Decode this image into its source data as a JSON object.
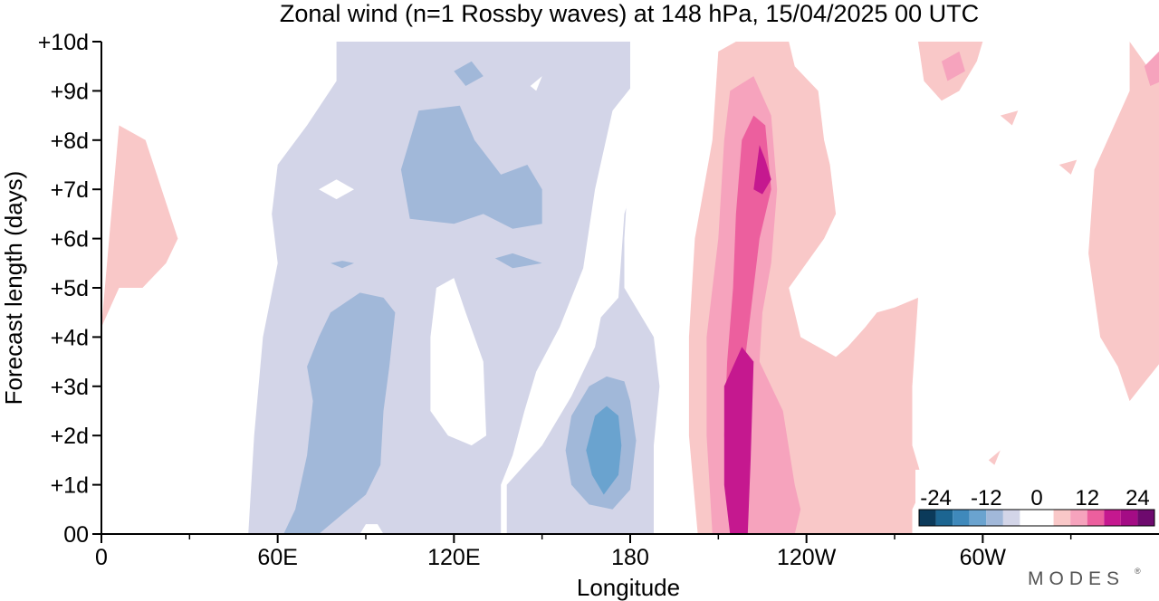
{
  "chart_data": {
    "type": "heatmap",
    "title": "Zonal wind (n=1 Rossby waves) at 148 hPa,  15/04/2025  00 UTC",
    "xlabel": "Longitude",
    "ylabel": "Forecast length (days)",
    "x_ticks": [
      {
        "lon": 0,
        "label": "0"
      },
      {
        "lon": 60,
        "label": "60E"
      },
      {
        "lon": 120,
        "label": "120E"
      },
      {
        "lon": 180,
        "label": "180"
      },
      {
        "lon": 240,
        "label": "120W"
      },
      {
        "lon": 300,
        "label": "60W"
      }
    ],
    "x_minor_ticks": [
      30,
      90,
      150,
      210,
      270,
      330
    ],
    "y_ticks": [
      {
        "day": 0,
        "label": "00"
      },
      {
        "day": 1,
        "label": "+1d"
      },
      {
        "day": 2,
        "label": "+2d"
      },
      {
        "day": 3,
        "label": "+3d"
      },
      {
        "day": 4,
        "label": "+4d"
      },
      {
        "day": 5,
        "label": "+5d"
      },
      {
        "day": 6,
        "label": "+6d"
      },
      {
        "day": 7,
        "label": "+7d"
      },
      {
        "day": 8,
        "label": "+8d"
      },
      {
        "day": 9,
        "label": "+9d"
      },
      {
        "day": 10,
        "label": "+10d"
      }
    ],
    "xlim": [
      0,
      360
    ],
    "ylim": [
      0,
      10
    ],
    "colorbar": {
      "levels": [
        -28,
        -24,
        -20,
        -16,
        -12,
        -8,
        -4,
        0,
        4,
        8,
        12,
        16,
        20,
        24,
        28
      ],
      "colors": [
        "#0b3a5a",
        "#1c6591",
        "#3f89bb",
        "#6aa3cf",
        "#a1b8d9",
        "#d3d5e8",
        "#ffffff",
        "#ffffff",
        "#f9c8c8",
        "#f6a3bd",
        "#ec5f9e",
        "#c5188f",
        "#a40c85",
        "#6e0a6e"
      ],
      "labeled": [
        {
          "value": -24,
          "label": "-24"
        },
        {
          "value": -12,
          "label": "-12"
        },
        {
          "value": 0,
          "label": "0"
        },
        {
          "value": 12,
          "label": "12"
        },
        {
          "value": 24,
          "label": "24"
        }
      ]
    },
    "regions": [
      {
        "level": -4,
        "color": "#d3d5e8",
        "pts": [
          [
            50,
            0
          ],
          [
            52,
            2
          ],
          [
            55,
            4
          ],
          [
            60,
            5.5
          ],
          [
            58,
            6.5
          ],
          [
            60,
            7.5
          ],
          [
            70,
            8.3
          ],
          [
            80,
            9.2
          ],
          [
            80,
            10
          ],
          [
            180,
            10
          ],
          [
            180,
            8
          ],
          [
            178,
            6
          ],
          [
            178,
            5
          ],
          [
            188,
            4
          ],
          [
            190,
            3
          ],
          [
            188,
            1.8
          ],
          [
            188,
            0
          ]
        ]
      },
      {
        "level": 0,
        "color": "#ffffff",
        "pts": [
          [
            112,
            4
          ],
          [
            114,
            5
          ],
          [
            120,
            5.2
          ],
          [
            124,
            4.5
          ],
          [
            130,
            3.5
          ],
          [
            131,
            2
          ],
          [
            126,
            1.8
          ],
          [
            118,
            2
          ],
          [
            112,
            2.5
          ]
        ]
      },
      {
        "level": 0,
        "color": "#ffffff",
        "pts": [
          [
            138,
            0
          ],
          [
            138,
            1
          ],
          [
            150,
            1.8
          ],
          [
            160,
            2.8
          ],
          [
            168,
            3.8
          ],
          [
            170,
            4.4
          ],
          [
            176,
            4.8
          ],
          [
            178,
            6.5
          ],
          [
            188,
            8.5
          ],
          [
            182,
            9.2
          ],
          [
            174,
            8.6
          ],
          [
            168,
            7
          ],
          [
            164,
            5.4
          ],
          [
            160,
            4.8
          ],
          [
            156,
            4.2
          ],
          [
            148,
            3.3
          ],
          [
            144,
            2.5
          ],
          [
            140,
            1.6
          ],
          [
            136,
            1
          ],
          [
            136,
            0
          ]
        ]
      },
      {
        "level": 0,
        "color": "#ffffff",
        "pts": [
          [
            88,
            0
          ],
          [
            96,
            0
          ],
          [
            94,
            0.2
          ],
          [
            90,
            0.2
          ]
        ]
      },
      {
        "level": 0,
        "color": "#ffffff",
        "pts": [
          [
            146,
            9.1
          ],
          [
            150,
            9.3
          ],
          [
            148,
            9
          ]
        ]
      },
      {
        "level": 0,
        "color": "#ffffff",
        "pts": [
          [
            74,
            7
          ],
          [
            80,
            7.2
          ],
          [
            86,
            7
          ],
          [
            80,
            6.8
          ]
        ]
      },
      {
        "level": -8,
        "color": "#a1b8d9",
        "pts": [
          [
            108,
            8.6
          ],
          [
            122,
            8.7
          ],
          [
            127,
            8
          ],
          [
            136,
            7.3
          ],
          [
            145,
            7.5
          ],
          [
            150,
            7
          ],
          [
            150,
            6.3
          ],
          [
            140,
            6.2
          ],
          [
            130,
            6.5
          ],
          [
            120,
            6.3
          ],
          [
            105,
            6.4
          ],
          [
            102,
            7.4
          ]
        ]
      },
      {
        "level": -8,
        "color": "#a1b8d9",
        "pts": [
          [
            120,
            9.4
          ],
          [
            126,
            9.6
          ],
          [
            130,
            9.3
          ],
          [
            124,
            9.1
          ]
        ]
      },
      {
        "level": -8,
        "color": "#a1b8d9",
        "pts": [
          [
            134,
            5.6
          ],
          [
            140,
            5.7
          ],
          [
            150,
            5.5
          ],
          [
            140,
            5.4
          ]
        ]
      },
      {
        "level": -8,
        "color": "#a1b8d9",
        "pts": [
          [
            78,
            5.5
          ],
          [
            82,
            5.55
          ],
          [
            86,
            5.5
          ],
          [
            82,
            5.4
          ]
        ]
      },
      {
        "level": -8,
        "color": "#a1b8d9",
        "pts": [
          [
            74,
            0
          ],
          [
            82,
            0.4
          ],
          [
            90,
            0.8
          ],
          [
            95,
            1.4
          ],
          [
            96,
            2.5
          ],
          [
            98,
            3.4
          ],
          [
            100,
            4.5
          ],
          [
            96,
            4.8
          ],
          [
            88,
            4.9
          ],
          [
            78,
            4.5
          ],
          [
            74,
            4
          ],
          [
            70,
            3.4
          ],
          [
            72,
            2.7
          ],
          [
            70,
            1.6
          ],
          [
            66,
            0.5
          ],
          [
            62,
            0
          ]
        ]
      },
      {
        "level": -8,
        "color": "#a1b8d9",
        "pts": [
          [
            180,
            0.9
          ],
          [
            182,
            1.9
          ],
          [
            180,
            2.7
          ],
          [
            178,
            3.1
          ],
          [
            172,
            3.2
          ],
          [
            166,
            3
          ],
          [
            160,
            2.4
          ],
          [
            158,
            1.7
          ],
          [
            160,
            1
          ],
          [
            166,
            0.6
          ],
          [
            174,
            0.5
          ]
        ]
      },
      {
        "level": -12,
        "color": "#6aa3cf",
        "pts": [
          [
            171,
            0.8
          ],
          [
            176,
            1.2
          ],
          [
            177,
            1.8
          ],
          [
            176,
            2.4
          ],
          [
            172,
            2.6
          ],
          [
            168,
            2.4
          ],
          [
            165,
            1.7
          ],
          [
            167,
            1.2
          ]
        ]
      },
      {
        "level": 4,
        "color": "#f9c8c8",
        "pts": [
          [
            203,
            0
          ],
          [
            200,
            2
          ],
          [
            200,
            4
          ],
          [
            202,
            6
          ],
          [
            208,
            8
          ],
          [
            210,
            9.8
          ],
          [
            216,
            10
          ],
          [
            234,
            10
          ],
          [
            236,
            9.5
          ],
          [
            244,
            9
          ],
          [
            246,
            8
          ],
          [
            248,
            7.5
          ],
          [
            250,
            6.5
          ],
          [
            246,
            6
          ],
          [
            240,
            5.5
          ],
          [
            234,
            5
          ],
          [
            238,
            4
          ],
          [
            250,
            3.6
          ],
          [
            254,
            3.8
          ],
          [
            260,
            4.2
          ],
          [
            264,
            4.5
          ],
          [
            270,
            4.6
          ],
          [
            278,
            4.8
          ],
          [
            276,
            3
          ],
          [
            276,
            1.8
          ],
          [
            280,
            1
          ],
          [
            276,
            0.5
          ],
          [
            276,
            0
          ]
        ]
      },
      {
        "level": 4,
        "color": "#f9c8c8",
        "pts": [
          [
            0,
            4.2
          ],
          [
            6,
            8.3
          ],
          [
            15,
            8
          ],
          [
            26,
            6
          ],
          [
            22,
            5.5
          ],
          [
            14,
            5
          ],
          [
            6,
            5
          ]
        ]
      },
      {
        "level": 4,
        "color": "#f9c8c8",
        "pts": [
          [
            278,
            10
          ],
          [
            280,
            9.2
          ],
          [
            286,
            8.8
          ],
          [
            292,
            9
          ],
          [
            298,
            9.6
          ],
          [
            300,
            10
          ]
        ]
      },
      {
        "level": 4,
        "color": "#f9c8c8",
        "pts": [
          [
            350,
            10
          ],
          [
            356,
            9.5
          ],
          [
            362,
            9
          ],
          [
            362,
            3.6
          ],
          [
            350,
            2.7
          ],
          [
            346,
            3.4
          ],
          [
            340,
            4
          ],
          [
            336,
            5.7
          ],
          [
            338,
            7.4
          ],
          [
            350,
            9
          ]
        ]
      },
      {
        "level": 4,
        "color": "#f9c8c8",
        "pts": [
          [
            306,
            8.5
          ],
          [
            312,
            8.6
          ],
          [
            310,
            8.3
          ]
        ]
      },
      {
        "level": 4,
        "color": "#f9c8c8",
        "pts": [
          [
            326,
            7.5
          ],
          [
            332,
            7.6
          ],
          [
            330,
            7.3
          ]
        ]
      },
      {
        "level": 4,
        "color": "#f9c8c8",
        "pts": [
          [
            302,
            1.5
          ],
          [
            306,
            1.7
          ],
          [
            304,
            1.4
          ]
        ]
      },
      {
        "level": 8,
        "color": "#f6a3bd",
        "pts": [
          [
            208,
            0
          ],
          [
            206,
            2
          ],
          [
            206,
            4
          ],
          [
            210,
            6
          ],
          [
            212,
            8
          ],
          [
            214,
            9
          ],
          [
            222,
            9.3
          ],
          [
            228,
            8.5
          ],
          [
            230,
            7
          ],
          [
            228,
            5.5
          ],
          [
            225,
            4.5
          ],
          [
            224,
            3.5
          ],
          [
            232,
            2.5
          ],
          [
            236,
            1
          ],
          [
            238,
            0.5
          ],
          [
            236,
            0
          ]
        ]
      },
      {
        "level": 8,
        "color": "#f6a3bd",
        "pts": [
          [
            286,
            9.6
          ],
          [
            292,
            9.8
          ],
          [
            294,
            9.4
          ],
          [
            288,
            9.2
          ]
        ]
      },
      {
        "level": 8,
        "color": "#f6a3bd",
        "pts": [
          [
            355,
            9.5
          ],
          [
            360,
            9.8
          ],
          [
            361,
            9.2
          ],
          [
            357,
            9.1
          ]
        ]
      },
      {
        "level": 12,
        "color": "#ec5f9e",
        "pts": [
          [
            214,
            0
          ],
          [
            212,
            2
          ],
          [
            213,
            3.5
          ],
          [
            215,
            5
          ],
          [
            216,
            6.5
          ],
          [
            218,
            8
          ],
          [
            222,
            8.5
          ],
          [
            226,
            8.3
          ],
          [
            228,
            7
          ],
          [
            224,
            6
          ],
          [
            222,
            5
          ],
          [
            220,
            4
          ],
          [
            218,
            3
          ],
          [
            220,
            1.5
          ],
          [
            220,
            0
          ]
        ]
      },
      {
        "level": 16,
        "color": "#c5188f",
        "pts": [
          [
            214,
            0
          ],
          [
            212,
            1
          ],
          [
            212,
            3
          ],
          [
            218,
            3.8
          ],
          [
            222,
            3.5
          ],
          [
            221,
            1.5
          ],
          [
            220,
            0
          ]
        ]
      },
      {
        "level": 16,
        "color": "#c5188f",
        "pts": [
          [
            222,
            7
          ],
          [
            224,
            7.9
          ],
          [
            226,
            7.6
          ],
          [
            228,
            7.2
          ],
          [
            225,
            6.9
          ]
        ]
      }
    ],
    "logo": "MODES",
    "logo_mark": "®"
  }
}
